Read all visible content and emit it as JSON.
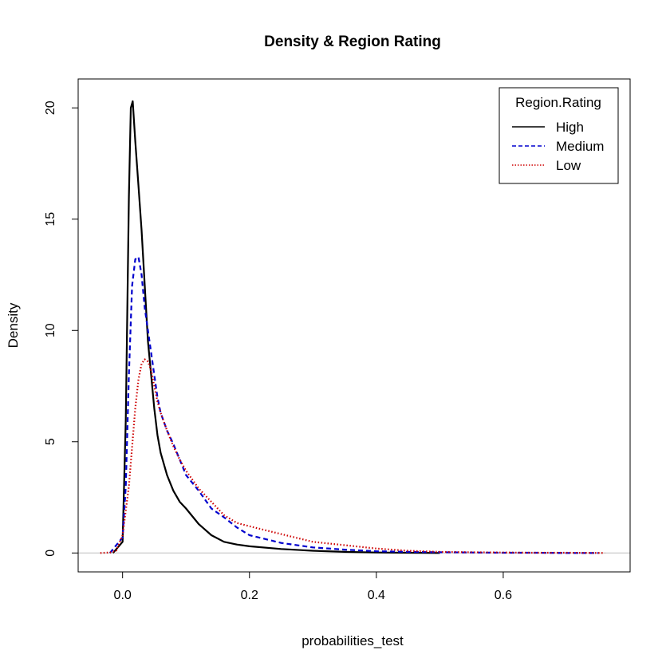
{
  "chart_data": {
    "type": "line",
    "title": "Density & Region Rating",
    "xlabel": "probabilities_test",
    "ylabel": "Density",
    "xlim": [
      -0.07,
      0.8
    ],
    "ylim": [
      -0.85,
      21.3
    ],
    "xticks": [
      0.0,
      0.2,
      0.4,
      0.6
    ],
    "xtick_labels": [
      "0.0",
      "0.2",
      "0.4",
      "0.6"
    ],
    "yticks": [
      0,
      5,
      10,
      15,
      20
    ],
    "ytick_labels": [
      "0",
      "5",
      "10",
      "15",
      "20"
    ],
    "grid": false,
    "baseline": {
      "y": 0,
      "color": "#bebebe"
    },
    "legend": {
      "title": "Region.Rating",
      "position": "top-right",
      "entries": [
        "High",
        "Medium",
        "Low"
      ]
    },
    "series": [
      {
        "name": "High",
        "color": "#000000",
        "style": "solid",
        "x": [
          -0.015,
          0.0,
          0.005,
          0.01,
          0.013,
          0.016,
          0.02,
          0.025,
          0.03,
          0.035,
          0.04,
          0.045,
          0.05,
          0.055,
          0.06,
          0.07,
          0.08,
          0.09,
          0.1,
          0.12,
          0.14,
          0.16,
          0.18,
          0.2,
          0.25,
          0.3,
          0.35,
          0.4,
          0.45,
          0.5
        ],
        "y": [
          0,
          0.5,
          6.0,
          16.0,
          20.0,
          20.3,
          18.5,
          16.5,
          14.5,
          12.0,
          9.5,
          8.0,
          6.5,
          5.3,
          4.5,
          3.5,
          2.8,
          2.3,
          2.0,
          1.3,
          0.8,
          0.5,
          0.38,
          0.3,
          0.18,
          0.1,
          0.05,
          0.02,
          0.01,
          0
        ]
      },
      {
        "name": "Medium",
        "color": "#0000cd",
        "style": "dashed",
        "x": [
          -0.02,
          0.0,
          0.005,
          0.01,
          0.015,
          0.02,
          0.025,
          0.03,
          0.035,
          0.04,
          0.045,
          0.05,
          0.055,
          0.06,
          0.07,
          0.08,
          0.09,
          0.1,
          0.12,
          0.14,
          0.16,
          0.18,
          0.2,
          0.25,
          0.3,
          0.35,
          0.4,
          0.45,
          0.5,
          0.55,
          0.6,
          0.65,
          0.7,
          0.75
        ],
        "y": [
          0,
          0.7,
          3.0,
          8.0,
          12.0,
          13.2,
          13.3,
          12.5,
          11.0,
          10.0,
          9.0,
          8.0,
          7.0,
          6.3,
          5.5,
          4.9,
          4.2,
          3.5,
          2.8,
          2.0,
          1.6,
          1.15,
          0.8,
          0.45,
          0.25,
          0.15,
          0.08,
          0.05,
          0.03,
          0.02,
          0.01,
          0.01,
          0.0,
          0
        ]
      },
      {
        "name": "Low",
        "color": "#cd0000",
        "style": "dotted",
        "x": [
          -0.035,
          -0.02,
          -0.01,
          0.0,
          0.01,
          0.02,
          0.025,
          0.03,
          0.035,
          0.04,
          0.045,
          0.05,
          0.055,
          0.06,
          0.07,
          0.08,
          0.09,
          0.1,
          0.12,
          0.14,
          0.16,
          0.18,
          0.2,
          0.25,
          0.3,
          0.35,
          0.4,
          0.45,
          0.5,
          0.55,
          0.6,
          0.65,
          0.7,
          0.76
        ],
        "y": [
          0,
          0.02,
          0.1,
          0.8,
          3.0,
          6.5,
          7.8,
          8.5,
          8.7,
          8.6,
          8.2,
          7.5,
          6.8,
          6.3,
          5.5,
          4.8,
          4.2,
          3.7,
          2.9,
          2.3,
          1.7,
          1.35,
          1.2,
          0.85,
          0.5,
          0.35,
          0.2,
          0.1,
          0.05,
          0.03,
          0.02,
          0.01,
          0.01,
          0
        ]
      }
    ]
  }
}
